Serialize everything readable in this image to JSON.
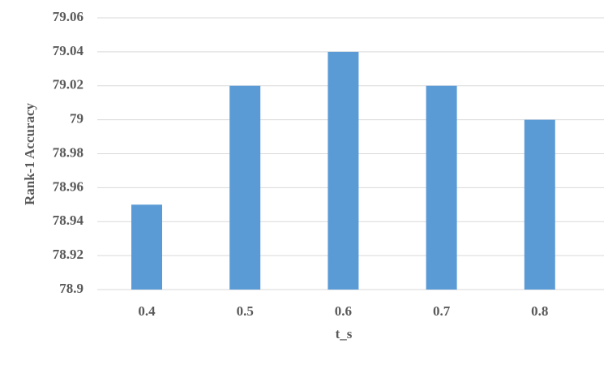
{
  "chart_data": {
    "type": "bar",
    "x_label": "t_s",
    "y_label": "Rank-1 Accuracy",
    "categories": [
      "0.4",
      "0.5",
      "0.6",
      "0.7",
      "0.8"
    ],
    "values": [
      78.95,
      79.02,
      79.04,
      79.02,
      79.0
    ],
    "color": "#5b9bd5",
    "ylim": [
      78.9,
      79.06
    ],
    "yticks": [
      78.9,
      78.92,
      78.94,
      78.96,
      78.98,
      79,
      79.02,
      79.04,
      79.06
    ],
    "grid": true
  }
}
